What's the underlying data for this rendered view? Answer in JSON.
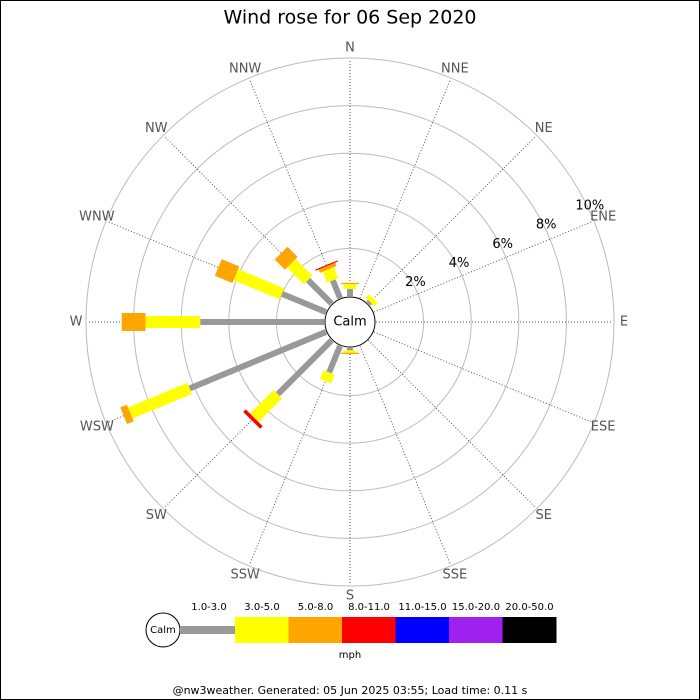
{
  "chart_data": {
    "type": "wind_rose",
    "title": "Wind rose for 06 Sep 2020",
    "categories": [
      "N",
      "NNE",
      "NE",
      "ENE",
      "E",
      "ESE",
      "SE",
      "SSE",
      "S",
      "SSW",
      "SW",
      "WSW",
      "W",
      "WNW",
      "NW",
      "NNW"
    ],
    "center_label": "Calm",
    "rlim": [
      0,
      10
    ],
    "rticks": [
      {
        "value": 2,
        "label": "2%"
      },
      {
        "value": 4,
        "label": "4%"
      },
      {
        "value": 6,
        "label": "6%"
      },
      {
        "value": 8,
        "label": "8%"
      },
      {
        "value": 10,
        "label": "10%"
      }
    ],
    "series": [
      {
        "name": "1.0-3.0",
        "color": "#999999",
        "values": [
          0.3,
          0,
          0.1,
          0,
          0,
          0,
          0,
          0,
          0.1,
          1.2,
          3.2,
          6.2,
          5.2,
          2.0,
          1.4,
          0.8
        ]
      },
      {
        "name": "3.0-5.0",
        "color": "#ffff00",
        "values": [
          0.2,
          0,
          0.2,
          0,
          0,
          0,
          0,
          0,
          0.1,
          0.4,
          1.4,
          2.7,
          2.3,
          2.1,
          1.0,
          0.5
        ]
      },
      {
        "name": "5.0-8.0",
        "color": "#ffa500",
        "values": [
          0.05,
          0,
          0,
          0,
          0,
          0,
          0,
          0,
          0.05,
          0,
          0,
          0.3,
          1.0,
          0.8,
          0.6,
          0.15
        ]
      },
      {
        "name": "8.0-11.0",
        "color": "#ff0000",
        "values": [
          0,
          0,
          0,
          0,
          0,
          0,
          0,
          0,
          0,
          0,
          0.15,
          0,
          0,
          0,
          0,
          0.05
        ]
      },
      {
        "name": "11.0-15.0",
        "color": "#0000ff",
        "values": [
          0,
          0,
          0,
          0,
          0,
          0,
          0,
          0,
          0,
          0,
          0,
          0,
          0,
          0,
          0,
          0
        ]
      },
      {
        "name": "15.0-20.0",
        "color": "#a020f0",
        "values": [
          0,
          0,
          0,
          0,
          0,
          0,
          0,
          0,
          0,
          0,
          0,
          0,
          0,
          0,
          0,
          0
        ]
      },
      {
        "name": "20.0-50.0",
        "color": "#000000",
        "values": [
          0,
          0,
          0,
          0,
          0,
          0,
          0,
          0,
          0,
          0,
          0,
          0,
          0,
          0,
          0,
          0
        ]
      }
    ],
    "unit": "mph",
    "footer": "@nw3weather. Generated: 05 Jun 2025 03:55; Load time: 0.11 s"
  }
}
